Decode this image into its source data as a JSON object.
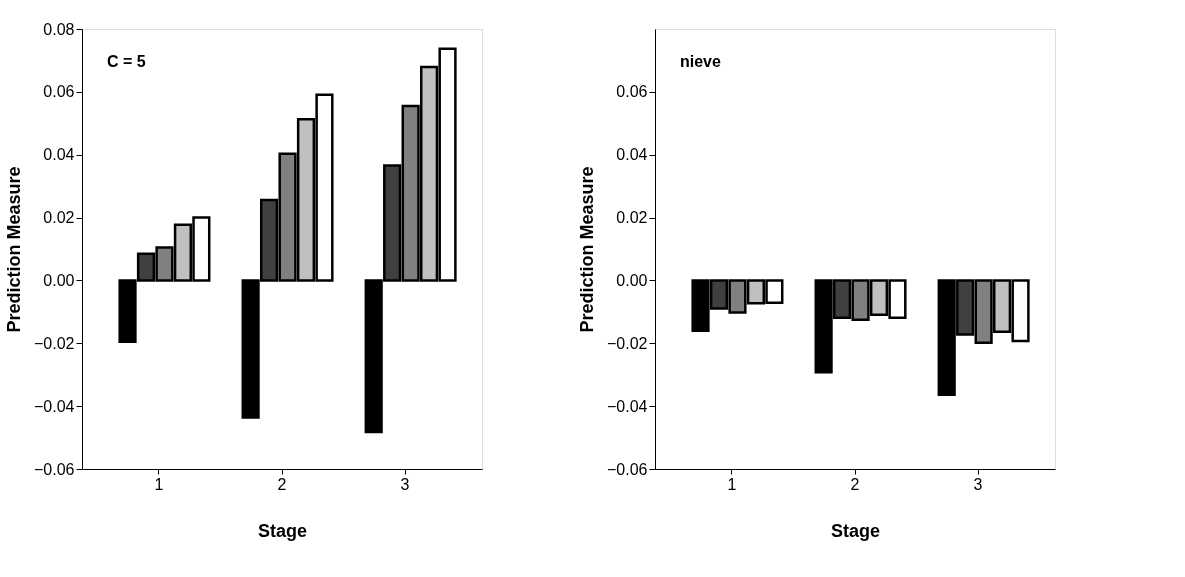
{
  "chart_data": [
    {
      "type": "bar",
      "xlabel": "Stage",
      "ylabel": "Prediction Measure",
      "categories": [
        "1",
        "2",
        "3"
      ],
      "ylim": [
        -0.06,
        0.08
      ],
      "yticks": [
        -0.06,
        -0.04,
        -0.02,
        {
          "value": 0,
          "label": "0.00"
        },
        0.02,
        0.04,
        0.06,
        0.08
      ],
      "grid": false,
      "annotations": [
        "C = 5"
      ],
      "series": [
        {
          "color": "#000000",
          "values": [
            -0.0195,
            -0.0436,
            -0.0482
          ]
        },
        {
          "color": "#404040",
          "values": [
            0.0085,
            0.0256,
            0.0366
          ]
        },
        {
          "color": "#808080",
          "values": [
            0.0105,
            0.0403,
            0.0555
          ]
        },
        {
          "color": "#c0c0c0",
          "values": [
            0.0177,
            0.0513,
            0.0679
          ]
        },
        {
          "color": "#ffffff",
          "values": [
            0.02,
            0.0591,
            0.0737
          ]
        }
      ]
    },
    {
      "type": "bar",
      "xlabel": "Stage",
      "ylabel": "Prediction Measure",
      "categories": [
        "1",
        "2",
        "3"
      ],
      "ylim": [
        -0.06,
        0.08
      ],
      "yticks": [
        -0.06,
        -0.04,
        -0.02,
        {
          "value": 0,
          "label": "0.00"
        },
        0.02,
        0.04,
        0.06
      ],
      "grid": false,
      "annotations": [
        "nieve"
      ],
      "series": [
        {
          "color": "#000000",
          "values": [
            -0.016,
            -0.0292,
            -0.0364
          ]
        },
        {
          "color": "#404040",
          "values": [
            -0.0089,
            -0.0119,
            -0.0172
          ]
        },
        {
          "color": "#808080",
          "values": [
            -0.0102,
            -0.0125,
            -0.0198
          ]
        },
        {
          "color": "#c0c0c0",
          "values": [
            -0.0073,
            -0.0109,
            -0.0163
          ]
        },
        {
          "color": "#ffffff",
          "values": [
            -0.0071,
            -0.0119,
            -0.0193
          ]
        }
      ]
    }
  ]
}
